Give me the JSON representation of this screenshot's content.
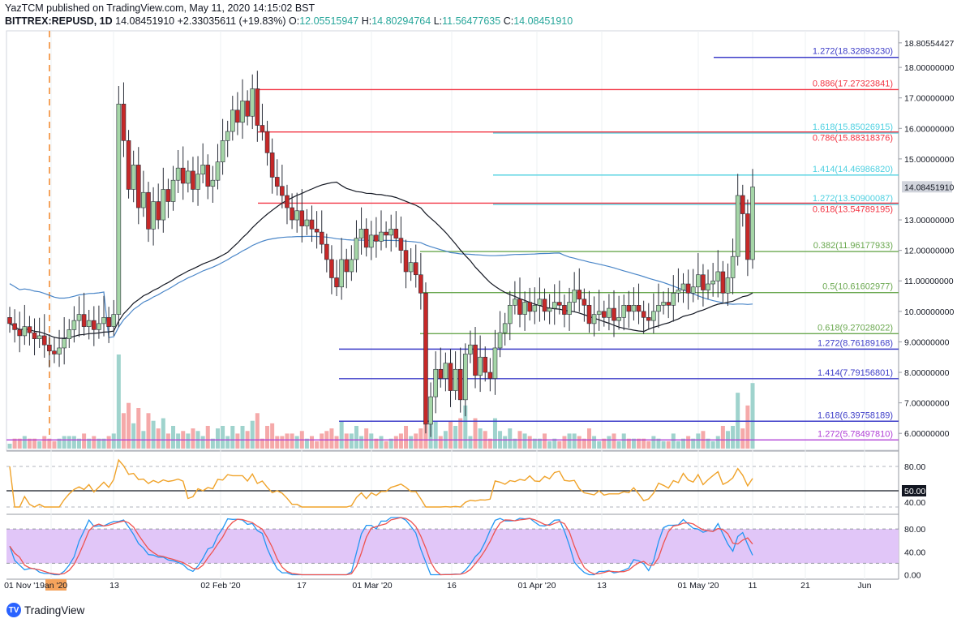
{
  "header": {
    "author_line": "YazTCM published on TradingView.com, May 11, 2020 14:15:02 BST",
    "symbol": "BITTREX:REPUSD, 1D",
    "last": "14.08451910",
    "change": "+2.33035611 (+19.83%)",
    "o_label": "O:",
    "o_value": "12.05515947",
    "h_label": "H:",
    "h_value": "14.80294764",
    "l_label": "L:",
    "l_value": "11.56477635",
    "c_label": "C:",
    "c_value": "14.08451910"
  },
  "footer": {
    "brand": "TradingView"
  },
  "colors": {
    "up": "#26a69a",
    "up_fill": "#a5d6a7",
    "down": "#ef5350",
    "down_fill": "#c62828",
    "fib_red": "#f23645",
    "fib_cyan": "#4dd0e1",
    "fib_green": "#6aa84f",
    "fib_blue": "#3d3dc8",
    "fib_purple": "#b03fd6",
    "rsi": "#f0a32a",
    "stoch_k": "#2196f3",
    "stoch_d": "#ef5350",
    "stoch_band": "#e1c6f8",
    "ma_black": "#131722",
    "ma_blue": "#4a86c8"
  },
  "chart_data": {
    "type": "candlestick",
    "symbol": "BITTREX:REPUSD",
    "interval": "1D",
    "y_range": [
      5.5,
      19.2
    ],
    "last_price": 14.0845191,
    "x_ticks": [
      "01 Nov '19",
      "an '20",
      "13",
      "02 Feb '20",
      "17",
      "01 Mar '20",
      "16",
      "01 Apr '20",
      "13",
      "01 May '20",
      "11",
      "21",
      "Jun"
    ],
    "y_ticks": [
      "18.80554427",
      "18.00000000",
      "17.00000000",
      "16.00000000",
      "15.00000000",
      "14.08451910",
      "13.00000000",
      "12.00000000",
      "11.00000000",
      "10.00000000",
      "9.00000000",
      "8.00000000",
      "7.00000000",
      "6.00000000"
    ],
    "fib_levels": [
      {
        "label": "1.272(18.32893230)",
        "value": 18.3289323,
        "color": "blue"
      },
      {
        "label": "0.886(17.27323841)",
        "value": 17.27323841,
        "color": "red"
      },
      {
        "label": "1.618(15.85026915)",
        "value": 15.85026915,
        "color": "cyan"
      },
      {
        "label": "0.786(15.88318376)",
        "value": 15.88318376,
        "color": "red"
      },
      {
        "label": "1.414(14.46986820)",
        "value": 14.4698682,
        "color": "cyan"
      },
      {
        "label": "1.272(13.50900087)",
        "value": 13.50900087,
        "color": "cyan"
      },
      {
        "label": "0.618(13.54789195)",
        "value": 13.54789195,
        "color": "red"
      },
      {
        "label": "0.382(11.96177933)",
        "value": 11.96177933,
        "color": "green"
      },
      {
        "label": "0.5(10.61602977)",
        "value": 10.61602977,
        "color": "green"
      },
      {
        "label": "0.618(9.27028022)",
        "value": 9.27028022,
        "color": "green"
      },
      {
        "label": "1.272(8.76189168)",
        "value": 8.76189168,
        "color": "blue"
      },
      {
        "label": "1.414(7.79156801)",
        "value": 7.79156801,
        "color": "blue"
      },
      {
        "label": "1.618(6.39758189)",
        "value": 6.39758189,
        "color": "blue"
      },
      {
        "label": "1.272(5.78497810)",
        "value": 5.7849781,
        "color": "purple"
      }
    ],
    "close_prices": [
      9.6,
      9.4,
      9.2,
      9.5,
      9.3,
      9.1,
      9.2,
      8.9,
      8.7,
      8.6,
      8.8,
      9.1,
      9.4,
      9.7,
      9.9,
      9.5,
      9.7,
      9.4,
      9.6,
      9.8,
      9.5,
      9.9,
      16.8,
      15.6,
      14.0,
      14.8,
      13.4,
      13.9,
      12.7,
      13.6,
      13.0,
      14.0,
      13.6,
      14.3,
      14.7,
      14.2,
      14.6,
      14.0,
      14.5,
      14.8,
      14.1,
      14.3,
      14.9,
      15.6,
      15.9,
      16.6,
      16.2,
      16.9,
      16.4,
      17.3,
      16.1,
      15.9,
      15.2,
      14.4,
      14.1,
      13.8,
      13.4,
      13.0,
      13.3,
      12.8,
      13.0,
      12.7,
      12.6,
      12.2,
      11.7,
      11.1,
      10.8,
      11.7,
      11.3,
      11.7,
      12.4,
      12.7,
      12.1,
      12.5,
      12.3,
      12.6,
      12.5,
      12.7,
      12.4,
      12.0,
      11.3,
      11.6,
      11.2,
      10.6,
      6.3,
      7.2,
      8.1,
      7.8,
      8.3,
      7.4,
      8.1,
      7.1,
      8.6,
      8.9,
      7.9,
      8.5,
      8.0,
      7.8,
      8.8,
      9.3,
      9.6,
      10.2,
      10.4,
      9.9,
      10.3,
      10.0,
      10.2,
      10.4,
      10.0,
      10.1,
      10.3,
      10.2,
      9.9,
      10.3,
      10.7,
      10.4,
      10.2,
      9.6,
      9.9,
      10.0,
      9.8,
      10.1,
      9.7,
      9.8,
      10.2,
      10.0,
      10.2,
      10.0,
      9.8,
      9.7,
      10.0,
      10.2,
      10.3,
      10.2,
      10.6,
      10.7,
      10.9,
      10.6,
      10.8,
      11.2,
      10.7,
      10.9,
      11.0,
      11.3,
      10.6,
      11.1,
      11.8,
      13.8,
      13.2,
      11.7,
      14.08
    ]
  },
  "indicators": {
    "rsi": {
      "labels": [
        "80.00",
        "50.00",
        "40.00"
      ],
      "last": 50.0
    },
    "stoch_rsi": {
      "labels": [
        "80.00",
        "40.00",
        "0.00"
      ]
    }
  }
}
